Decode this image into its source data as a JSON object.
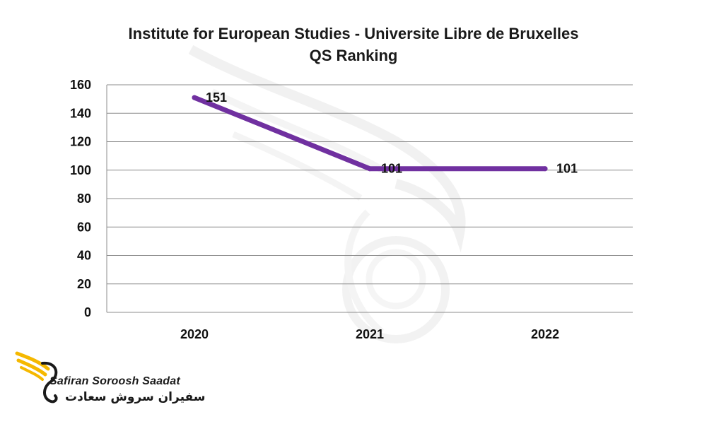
{
  "chart_data": {
    "type": "line",
    "title": "Institute for European Studies - Universite Libre de Bruxelles QS Ranking",
    "categories": [
      "2020",
      "2021",
      "2022"
    ],
    "series": [
      {
        "values": [
          151,
          101,
          101
        ],
        "color": "#7030A0"
      }
    ],
    "data_labels": [
      "151",
      "101",
      "101"
    ],
    "ylim": [
      0,
      160
    ],
    "yticks": [
      0,
      20,
      40,
      60,
      80,
      100,
      120,
      140,
      160
    ],
    "grid": true,
    "legend": "none"
  },
  "watermark": {
    "name": "Safiran Soroosh Saadat",
    "name_fa": "سفیران سروش سعادت",
    "accent": "#F5B800"
  }
}
